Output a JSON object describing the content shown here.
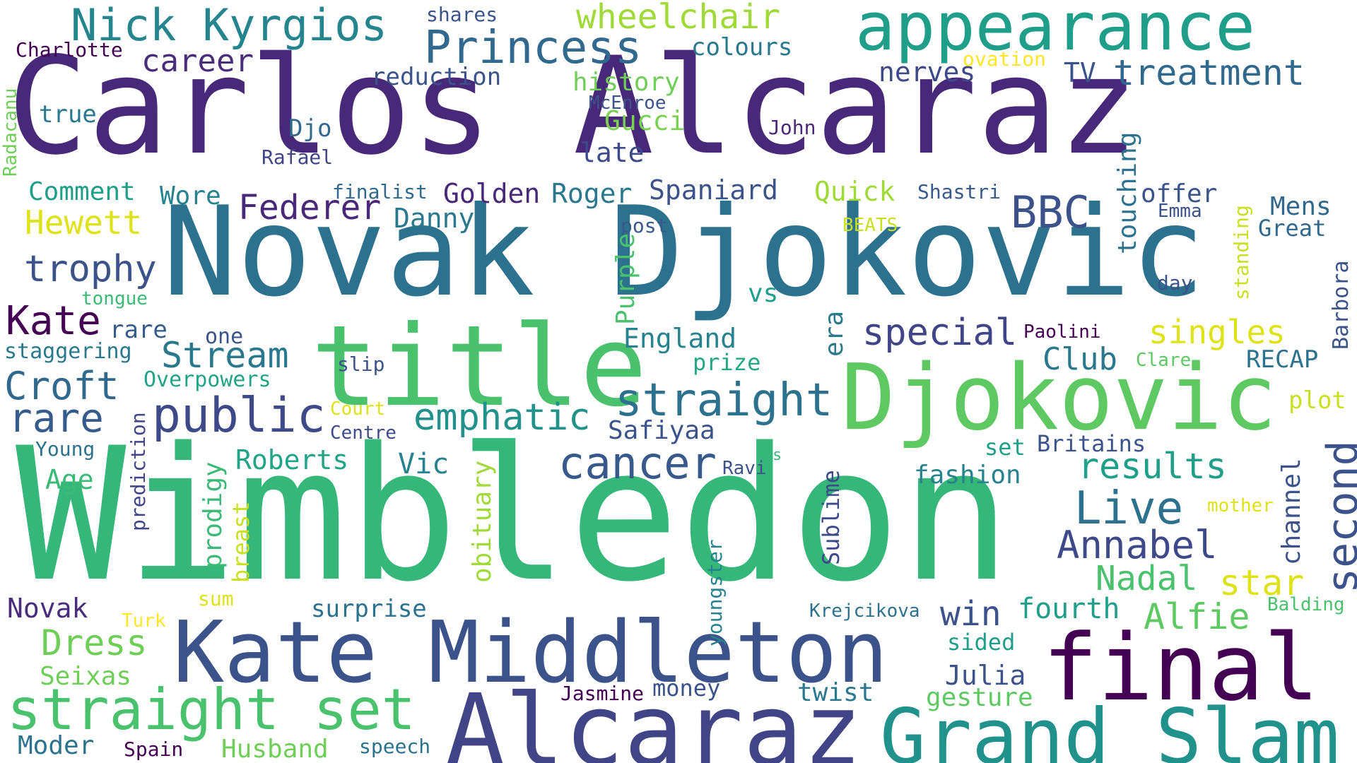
{
  "words": [
    {
      "text": "Carlos Alcaraz",
      "color": "#482878"
    },
    {
      "text": "Novak Djokovic",
      "color": "#2c728e"
    },
    {
      "text": "Wimbledon",
      "color": "#35b779"
    },
    {
      "text": "title",
      "color": "#4ac16d"
    },
    {
      "text": "Djokovic",
      "color": "#5ec962"
    },
    {
      "text": "Kate Middleton",
      "color": "#3b528b"
    },
    {
      "text": "Alcaraz",
      "color": "#414487"
    },
    {
      "text": "final",
      "color": "#440154"
    },
    {
      "text": "Grand Slam",
      "color": "#21918c"
    },
    {
      "text": "appearance",
      "color": "#1f9e89"
    },
    {
      "text": "straight set",
      "color": "#4ac16d"
    },
    {
      "text": "Princess",
      "color": "#31688e"
    },
    {
      "text": "Nick Kyrgios",
      "color": "#25858e"
    },
    {
      "text": "straight",
      "color": "#2c728e"
    },
    {
      "text": "special",
      "color": "#414487"
    },
    {
      "text": "public",
      "color": "#3e4989"
    },
    {
      "text": "cancer",
      "color": "#38598c"
    },
    {
      "text": "Live",
      "color": "#2c728e"
    },
    {
      "text": "BBC",
      "color": "#3b528b"
    },
    {
      "text": "Annabel",
      "color": "#3e4989"
    },
    {
      "text": "second",
      "color": "#3b528b"
    },
    {
      "text": "treatment",
      "color": "#31688e"
    },
    {
      "text": "trophy",
      "color": "#3b528b"
    },
    {
      "text": "Federer",
      "color": "#482878"
    },
    {
      "text": "Kate",
      "color": "#440154"
    },
    {
      "text": "Croft",
      "color": "#31688e"
    },
    {
      "text": "rare",
      "color": "#365c8d"
    },
    {
      "text": "Stream",
      "color": "#2a788e"
    },
    {
      "text": "emphatic",
      "color": "#21918c"
    },
    {
      "text": "results",
      "color": "#1f9e89"
    },
    {
      "text": "Nadal",
      "color": "#4ac16d"
    },
    {
      "text": "star",
      "color": "#dde318"
    },
    {
      "text": "Alfie",
      "color": "#5ec962"
    },
    {
      "text": "win",
      "color": "#3b528b"
    },
    {
      "text": "fourth",
      "color": "#1f9e89"
    },
    {
      "text": "Dress",
      "color": "#6ece58"
    },
    {
      "text": "Hewett",
      "color": "#dde318"
    },
    {
      "text": "singles",
      "color": "#dde318"
    },
    {
      "text": "Club",
      "color": "#2a788e"
    },
    {
      "text": "wheelchair",
      "color": "#a0da39"
    },
    {
      "text": "career",
      "color": "#472d7b"
    },
    {
      "text": "history",
      "color": "#6ece58"
    },
    {
      "text": "Gucci",
      "color": "#7ad151"
    },
    {
      "text": "late",
      "color": "#3e4989"
    },
    {
      "text": "Roger",
      "color": "#2a788e"
    },
    {
      "text": "Spaniard",
      "color": "#3b528b"
    },
    {
      "text": "Quick",
      "color": "#a0da39"
    },
    {
      "text": "Golden",
      "color": "#482878"
    },
    {
      "text": "Danny",
      "color": "#2a788e"
    },
    {
      "text": "Comment",
      "color": "#1f9e89"
    },
    {
      "text": "Wore",
      "color": "#26828e"
    },
    {
      "text": "Roberts",
      "color": "#20a386"
    },
    {
      "text": "Vic",
      "color": "#26828e"
    },
    {
      "text": "fashion",
      "color": "#26828e"
    },
    {
      "text": "England",
      "color": "#26828e"
    },
    {
      "text": "Safiyaa",
      "color": "#3b528b"
    },
    {
      "text": "Seixas",
      "color": "#6ece58"
    },
    {
      "text": "Husband",
      "color": "#6ece58"
    },
    {
      "text": "Moder",
      "color": "#2c728e"
    },
    {
      "text": "Novak",
      "color": "#472d7b"
    },
    {
      "text": "surprise",
      "color": "#2c728e"
    },
    {
      "text": "Age",
      "color": "#3aba76"
    },
    {
      "text": "gesture",
      "color": "#5ec962"
    },
    {
      "text": "Julia",
      "color": "#3b528b"
    },
    {
      "text": "twist",
      "color": "#2a788e"
    },
    {
      "text": "sided",
      "color": "#1f9e89"
    },
    {
      "text": "money",
      "color": "#3b528b"
    },
    {
      "text": "Jasmine",
      "color": "#440154"
    },
    {
      "text": "speech",
      "color": "#2c728e"
    },
    {
      "text": "Spain",
      "color": "#440154"
    },
    {
      "text": "nerves",
      "color": "#3e4989"
    },
    {
      "text": "reduction",
      "color": "#3b528b"
    },
    {
      "text": "colours",
      "color": "#2a788e"
    },
    {
      "text": "Djo",
      "color": "#31688e"
    },
    {
      "text": "true",
      "color": "#2a788e"
    },
    {
      "text": "Rafael",
      "color": "#414487"
    },
    {
      "text": "Charlotte",
      "color": "#440154"
    },
    {
      "text": "shares",
      "color": "#3b528b"
    },
    {
      "text": "McEnroe",
      "color": "#3b528b"
    },
    {
      "text": "John",
      "color": "#482878"
    },
    {
      "text": "ovation",
      "color": "#fde725"
    },
    {
      "text": "TV",
      "color": "#3b528b"
    },
    {
      "text": "finalist",
      "color": "#31688e"
    },
    {
      "text": "Shastri",
      "color": "#38598c"
    },
    {
      "text": "offer",
      "color": "#3b528b"
    },
    {
      "text": "Emma",
      "color": "#3b528b"
    },
    {
      "text": "Mens",
      "color": "#31688e"
    },
    {
      "text": "Great",
      "color": "#31688e"
    },
    {
      "text": "BEATS",
      "color": "#c8e020"
    },
    {
      "text": "post",
      "color": "#38598c"
    },
    {
      "text": "day",
      "color": "#3b528b"
    },
    {
      "text": "tongue",
      "color": "#3aba76"
    },
    {
      "text": "one",
      "color": "#3b528b"
    },
    {
      "text": "staggering",
      "color": "#2a788e"
    },
    {
      "text": "Overpowers",
      "color": "#20a386"
    },
    {
      "text": "slip",
      "color": "#3b528b"
    },
    {
      "text": "prize",
      "color": "#22a884"
    },
    {
      "text": "Paolini",
      "color": "#440154"
    },
    {
      "text": "Clare",
      "color": "#5ec962"
    },
    {
      "text": "RECAP",
      "color": "#2c728e"
    },
    {
      "text": "plot",
      "color": "#c8e020"
    },
    {
      "text": "Court",
      "color": "#dde318"
    },
    {
      "text": "Centre",
      "color": "#3e4989"
    },
    {
      "text": "Young",
      "color": "#2c728e"
    },
    {
      "text": "set",
      "color": "#1f9e89"
    },
    {
      "text": "Britains",
      "color": "#3b528b"
    },
    {
      "text": "Ravi",
      "color": "#3b528b"
    },
    {
      "text": "s",
      "color": "#3aba76"
    },
    {
      "text": "mother",
      "color": "#dde318"
    },
    {
      "text": "sum",
      "color": "#dde318"
    },
    {
      "text": "Turk",
      "color": "#fde725"
    },
    {
      "text": "Krejcikova",
      "color": "#2c728e"
    },
    {
      "text": "Balding",
      "color": "#4ac16d"
    },
    {
      "text": "vs",
      "color": "#1f9e89"
    },
    {
      "text": "Purple",
      "color": "#4ac16d"
    },
    {
      "text": "touching",
      "color": "#2c728e"
    },
    {
      "text": "era",
      "color": "#2a788e"
    },
    {
      "text": "standing",
      "color": "#c8e020"
    },
    {
      "text": "Barbora",
      "color": "#3b528b"
    },
    {
      "text": "Radacanu",
      "color": "#6ece58"
    },
    {
      "text": "prediction",
      "color": "#414487"
    },
    {
      "text": "prodigy",
      "color": "#3aba76"
    },
    {
      "text": "breast",
      "color": "#c8e020"
    },
    {
      "text": "obituary",
      "color": "#a0da39"
    },
    {
      "text": "youngster",
      "color": "#26828e"
    },
    {
      "text": "Sublime",
      "color": "#3e4989"
    },
    {
      "text": "channel",
      "color": "#3b528b"
    }
  ]
}
